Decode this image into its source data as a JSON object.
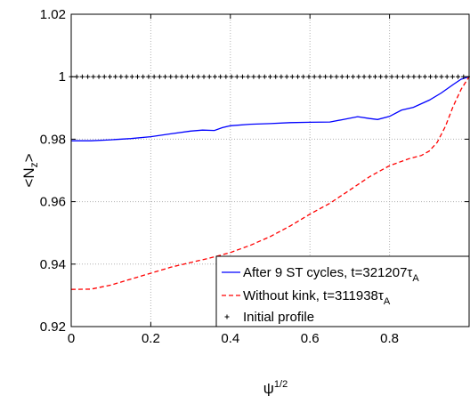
{
  "chart_data": {
    "type": "line",
    "xlabel": "ψ",
    "xlabel_sup": "1/2",
    "ylabel": "<N",
    "ylabel_sub": "z",
    "ylabel_end": ">",
    "xlim": [
      0,
      1
    ],
    "ylim": [
      0.92,
      1.02
    ],
    "xticks": [
      0,
      0.2,
      0.4,
      0.6,
      0.8
    ],
    "xtick_labels": [
      "0",
      "0.2",
      "0.4",
      "0.6",
      "0.8"
    ],
    "yticks": [
      0.92,
      0.94,
      0.96,
      0.98,
      1.0,
      1.02
    ],
    "ytick_labels": [
      "0.92",
      "0.94",
      "0.96",
      "0.98",
      "1",
      "1.02"
    ],
    "grid": true,
    "legend_position": "bottom-right",
    "series": [
      {
        "name_main": "After 9 ST cycles, t=321207τ",
        "name_sub": "A",
        "color": "#0000ff",
        "style": "solid",
        "x": [
          0,
          0.05,
          0.1,
          0.15,
          0.2,
          0.25,
          0.3,
          0.33,
          0.36,
          0.38,
          0.4,
          0.45,
          0.5,
          0.55,
          0.6,
          0.65,
          0.68,
          0.72,
          0.75,
          0.77,
          0.8,
          0.83,
          0.86,
          0.9,
          0.93,
          0.96,
          0.98,
          1.0
        ],
        "y": [
          0.9795,
          0.9795,
          0.9798,
          0.9802,
          0.9808,
          0.9817,
          0.9826,
          0.9829,
          0.9828,
          0.9837,
          0.9843,
          0.9848,
          0.985,
          0.9853,
          0.9854,
          0.9855,
          0.9862,
          0.9872,
          0.9866,
          0.9863,
          0.9873,
          0.9893,
          0.9902,
          0.9925,
          0.9948,
          0.9975,
          0.9992,
          1.0
        ]
      },
      {
        "name_main": "Without kink, t=311938τ",
        "name_sub": "A",
        "color": "#ff0000",
        "style": "dashed",
        "x": [
          0,
          0.05,
          0.1,
          0.15,
          0.2,
          0.25,
          0.3,
          0.35,
          0.4,
          0.45,
          0.5,
          0.55,
          0.6,
          0.65,
          0.7,
          0.75,
          0.8,
          0.85,
          0.88,
          0.9,
          0.92,
          0.94,
          0.96,
          0.98,
          1.0
        ],
        "y": [
          0.9319,
          0.932,
          0.9333,
          0.9352,
          0.9371,
          0.939,
          0.9405,
          0.942,
          0.9437,
          0.946,
          0.9488,
          0.9522,
          0.956,
          0.9595,
          0.9637,
          0.968,
          0.9715,
          0.9738,
          0.9748,
          0.9762,
          0.979,
          0.984,
          0.9905,
          0.996,
          1.0
        ]
      },
      {
        "name_main": "Initial profile",
        "name_sub": "",
        "color": "#000000",
        "style": "plus",
        "x": [
          0,
          1
        ],
        "y": [
          1.0,
          1.0
        ]
      }
    ]
  }
}
